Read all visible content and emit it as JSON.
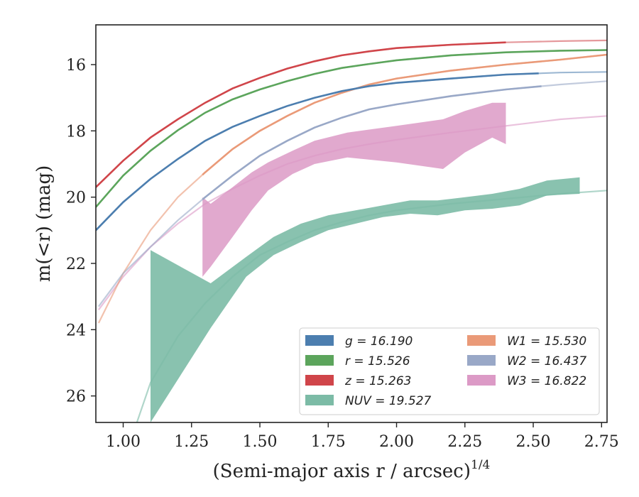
{
  "chart_data": {
    "type": "area",
    "xlabel": "(Semi-major axis r / arcsec)",
    "xlabel_sup": "1/4",
    "ylabel": "m(<r) (mag)",
    "xlim": [
      0.9,
      2.77
    ],
    "ylim": [
      26.8,
      14.8
    ],
    "y_inverted": true,
    "x_ticks": [
      1.0,
      1.25,
      1.5,
      1.75,
      2.0,
      2.25,
      2.5,
      2.75
    ],
    "x_tick_labels": [
      "1.00",
      "1.25",
      "1.50",
      "1.75",
      "2.00",
      "2.25",
      "2.50",
      "2.75"
    ],
    "y_ticks": [
      16,
      18,
      20,
      22,
      24,
      26
    ],
    "y_tick_labels": [
      "16",
      "18",
      "20",
      "22",
      "24",
      "26"
    ],
    "grid": false,
    "legend_position": "bottom-right",
    "legend_columns": 2,
    "series": [
      {
        "key": "g",
        "name": "g = 16.190",
        "color": "#4c7eaf",
        "curve": [
          [
            0.9,
            21.0
          ],
          [
            1.0,
            20.15
          ],
          [
            1.1,
            19.45
          ],
          [
            1.2,
            18.85
          ],
          [
            1.3,
            18.3
          ],
          [
            1.4,
            17.88
          ],
          [
            1.5,
            17.55
          ],
          [
            1.6,
            17.25
          ],
          [
            1.7,
            17.0
          ],
          [
            1.8,
            16.8
          ],
          [
            1.9,
            16.65
          ],
          [
            2.0,
            16.55
          ],
          [
            2.2,
            16.42
          ],
          [
            2.4,
            16.3
          ],
          [
            2.6,
            16.24
          ],
          [
            2.77,
            16.22
          ]
        ],
        "measured_to": 2.52
      },
      {
        "key": "r",
        "name": "r = 15.526",
        "color": "#5ca55c",
        "curve": [
          [
            0.9,
            20.3
          ],
          [
            1.0,
            19.35
          ],
          [
            1.1,
            18.6
          ],
          [
            1.2,
            17.98
          ],
          [
            1.3,
            17.45
          ],
          [
            1.4,
            17.05
          ],
          [
            1.5,
            16.75
          ],
          [
            1.6,
            16.5
          ],
          [
            1.7,
            16.28
          ],
          [
            1.8,
            16.1
          ],
          [
            1.9,
            15.98
          ],
          [
            2.0,
            15.87
          ],
          [
            2.2,
            15.72
          ],
          [
            2.4,
            15.63
          ],
          [
            2.6,
            15.58
          ],
          [
            2.77,
            15.56
          ]
        ],
        "measured_to": 2.77
      },
      {
        "key": "z",
        "name": "z = 15.263",
        "color": "#d0454a",
        "curve": [
          [
            0.9,
            19.7
          ],
          [
            1.0,
            18.9
          ],
          [
            1.1,
            18.2
          ],
          [
            1.2,
            17.65
          ],
          [
            1.3,
            17.15
          ],
          [
            1.4,
            16.72
          ],
          [
            1.5,
            16.4
          ],
          [
            1.6,
            16.12
          ],
          [
            1.7,
            15.9
          ],
          [
            1.8,
            15.72
          ],
          [
            1.9,
            15.6
          ],
          [
            2.0,
            15.5
          ],
          [
            2.2,
            15.4
          ],
          [
            2.4,
            15.33
          ],
          [
            2.6,
            15.29
          ],
          [
            2.77,
            15.27
          ]
        ],
        "measured_to": 2.4
      },
      {
        "key": "w1",
        "name": "W1 = 15.530",
        "color": "#ea9a78",
        "curve": [
          [
            0.91,
            23.8
          ],
          [
            1.0,
            22.3
          ],
          [
            1.1,
            21.0
          ],
          [
            1.2,
            20.0
          ],
          [
            1.3,
            19.25
          ],
          [
            1.4,
            18.55
          ],
          [
            1.5,
            18.0
          ],
          [
            1.6,
            17.55
          ],
          [
            1.7,
            17.15
          ],
          [
            1.8,
            16.85
          ],
          [
            1.9,
            16.6
          ],
          [
            2.0,
            16.42
          ],
          [
            2.2,
            16.18
          ],
          [
            2.4,
            16.0
          ],
          [
            2.6,
            15.85
          ],
          [
            2.77,
            15.7
          ]
        ],
        "measured_from": 1.29,
        "measured_to": 2.77
      },
      {
        "key": "w2",
        "name": "W2 = 16.437",
        "color": "#99a8c7",
        "curve": [
          [
            0.91,
            23.3
          ],
          [
            1.0,
            22.3
          ],
          [
            1.1,
            21.5
          ],
          [
            1.2,
            20.7
          ],
          [
            1.3,
            20.0
          ],
          [
            1.4,
            19.35
          ],
          [
            1.5,
            18.75
          ],
          [
            1.6,
            18.3
          ],
          [
            1.7,
            17.9
          ],
          [
            1.8,
            17.6
          ],
          [
            1.9,
            17.35
          ],
          [
            2.0,
            17.2
          ],
          [
            2.2,
            16.95
          ],
          [
            2.4,
            16.75
          ],
          [
            2.6,
            16.6
          ],
          [
            2.77,
            16.5
          ]
        ],
        "measured_from": 1.29,
        "measured_to": 2.53
      },
      {
        "key": "w3",
        "name": "W3 = 16.822",
        "color": "#dc9ac6",
        "curve": [
          [
            0.91,
            23.4
          ],
          [
            1.0,
            22.4
          ],
          [
            1.1,
            21.5
          ],
          [
            1.2,
            20.8
          ],
          [
            1.3,
            20.2
          ],
          [
            1.4,
            19.75
          ],
          [
            1.5,
            19.35
          ],
          [
            1.6,
            19.0
          ],
          [
            1.7,
            18.75
          ],
          [
            1.8,
            18.55
          ],
          [
            1.9,
            18.4
          ],
          [
            2.0,
            18.27
          ],
          [
            2.2,
            18.05
          ],
          [
            2.4,
            17.85
          ],
          [
            2.6,
            17.65
          ],
          [
            2.77,
            17.55
          ]
        ],
        "band_x": [
          1.29,
          1.32,
          1.4,
          1.47,
          1.53,
          1.62,
          1.7,
          1.82,
          2.0,
          2.17,
          2.25,
          2.35,
          2.4
        ],
        "band_upper": [
          20.0,
          20.2,
          19.7,
          19.25,
          18.95,
          18.6,
          18.3,
          18.05,
          17.85,
          17.65,
          17.4,
          17.15,
          17.15
        ],
        "band_lower": [
          22.4,
          22.1,
          21.2,
          20.4,
          19.8,
          19.3,
          19.0,
          18.8,
          18.95,
          19.15,
          18.65,
          18.2,
          18.4
        ]
      },
      {
        "key": "nuv",
        "name": "NUV = 19.527",
        "color": "#7cbba6",
        "curve": [
          [
            1.05,
            26.8
          ],
          [
            1.1,
            25.6
          ],
          [
            1.2,
            24.2
          ],
          [
            1.3,
            23.2
          ],
          [
            1.4,
            22.4
          ],
          [
            1.5,
            21.75
          ],
          [
            1.6,
            21.35
          ],
          [
            1.7,
            21.0
          ],
          [
            1.8,
            20.75
          ],
          [
            1.9,
            20.55
          ],
          [
            2.0,
            20.4
          ],
          [
            2.2,
            20.2
          ],
          [
            2.4,
            20.05
          ],
          [
            2.6,
            19.9
          ],
          [
            2.77,
            19.8
          ]
        ],
        "band_x": [
          1.1,
          1.32,
          1.45,
          1.55,
          1.65,
          1.75,
          1.85,
          1.95,
          2.05,
          2.15,
          2.25,
          2.35,
          2.45,
          2.55,
          2.67
        ],
        "band_upper": [
          21.6,
          22.6,
          21.8,
          21.2,
          20.8,
          20.55,
          20.4,
          20.25,
          20.1,
          20.1,
          20.0,
          19.9,
          19.75,
          19.5,
          19.4
        ],
        "band_lower": [
          26.8,
          23.95,
          22.4,
          21.75,
          21.35,
          21.0,
          20.8,
          20.6,
          20.5,
          20.55,
          20.4,
          20.35,
          20.25,
          19.95,
          19.9
        ]
      }
    ],
    "legend": [
      {
        "key": "g",
        "label": "g = 16.190",
        "color": "#4c7eaf"
      },
      {
        "key": "r",
        "label": "r = 15.526",
        "color": "#5ca55c"
      },
      {
        "key": "z",
        "label": "z = 15.263",
        "color": "#d0454a"
      },
      {
        "key": "nuv",
        "label": "NUV = 19.527",
        "color": "#7cbba6"
      },
      {
        "key": "w1",
        "label": "W1 = 15.530",
        "color": "#ea9a78"
      },
      {
        "key": "w2",
        "label": "W2 = 16.437",
        "color": "#99a8c7"
      },
      {
        "key": "w3",
        "label": "W3 = 16.822",
        "color": "#dc9ac6"
      }
    ]
  }
}
